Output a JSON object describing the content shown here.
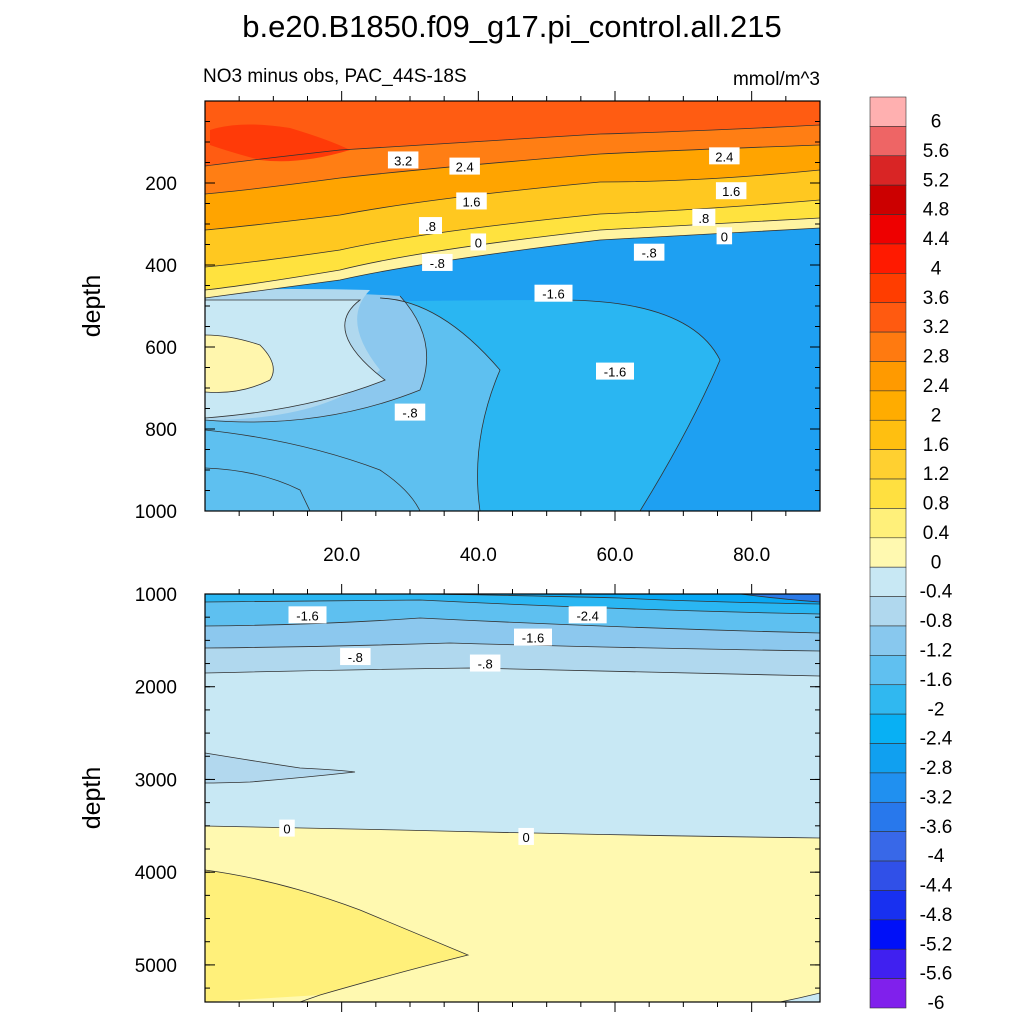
{
  "chart_data": {
    "title": "b.e20.B1850.f09_g17.pi_control.all.215",
    "left_subtitle": "NO3 minus obs, PAC_44S-18S",
    "units": "mmol/m^3",
    "type": "heatmap",
    "colorbar": {
      "levels": [
        6,
        5.6,
        5.2,
        4.8,
        4.4,
        4,
        3.6,
        3.2,
        2.8,
        2.4,
        2,
        1.6,
        1.2,
        0.8,
        0.4,
        0,
        -0.4,
        -0.8,
        -1.2,
        -1.6,
        -2,
        -2.4,
        -2.8,
        -3.2,
        -3.6,
        -4,
        -4.4,
        -4.8,
        -5.2,
        -5.6,
        -6
      ],
      "labels": [
        "6",
        "5.6",
        "5.2",
        "4.8",
        "4.4",
        "4",
        "3.6",
        "3.2",
        "2.8",
        "2.4",
        "2",
        "1.6",
        "1.2",
        "0.8",
        "0.4",
        "0",
        "-0.4",
        "-0.8",
        "-1.2",
        "-1.6",
        "-2",
        "-2.4",
        "-2.8",
        "-3.2",
        "-3.6",
        "-4",
        "-4.4",
        "-4.8",
        "-5.2",
        "-5.6",
        "-6"
      ],
      "colors": [
        "#ffb0b0",
        "#ee6565",
        "#d92525",
        "#cc0000",
        "#ee0000",
        "#ff1a00",
        "#ff3d00",
        "#ff5a10",
        "#ff7a10",
        "#ff9a00",
        "#ffac00",
        "#ffbf10",
        "#ffd030",
        "#ffe040",
        "#fff07a",
        "#fff9b0",
        "#c8e8f4",
        "#b0d8ee",
        "#88c8ee",
        "#60c0f0",
        "#30b8f0",
        "#08b0f4",
        "#10a0f0",
        "#2090f0",
        "#2878ec",
        "#3868e8",
        "#3050e8",
        "#1830f0",
        "#0010f8",
        "#4020f0",
        "#8020ec"
      ]
    },
    "panels": [
      {
        "name": "upper",
        "ylabel": "depth",
        "ylim": [
          1000,
          0
        ],
        "xlim": [
          0,
          90
        ],
        "yticks": [
          200,
          400,
          600,
          800,
          1000
        ],
        "ytick_labels": [
          "200",
          "400",
          "600",
          "800",
          "1000"
        ],
        "xticks": [
          20,
          40,
          60,
          80
        ],
        "xtick_labels": [
          "20.0",
          "40.0",
          "60.0",
          "80.0"
        ],
        "contour_labels": [
          {
            "text": "3.2",
            "x": 29,
            "y": 145
          },
          {
            "text": "2.4",
            "x": 38,
            "y": 160
          },
          {
            "text": "2.4",
            "x": 76,
            "y": 135
          },
          {
            "text": "1.6",
            "x": 39,
            "y": 245
          },
          {
            "text": "1.6",
            "x": 77,
            "y": 220
          },
          {
            "text": ".8",
            "x": 33,
            "y": 305
          },
          {
            "text": ".8",
            "x": 73,
            "y": 285
          },
          {
            "text": "0",
            "x": 40,
            "y": 345
          },
          {
            "text": "0",
            "x": 76,
            "y": 330
          },
          {
            "text": "-.8",
            "x": 34,
            "y": 395
          },
          {
            "text": "-.8",
            "x": 65,
            "y": 370
          },
          {
            "text": "-1.6",
            "x": 51,
            "y": 470
          },
          {
            "text": "-1.6",
            "x": 60,
            "y": 660
          },
          {
            "text": "-.8",
            "x": 30,
            "y": 760
          }
        ]
      },
      {
        "name": "lower",
        "ylabel": "depth",
        "ylim": [
          5400,
          1000
        ],
        "xlim": [
          0,
          90
        ],
        "yticks": [
          1000,
          2000,
          3000,
          4000,
          5000
        ],
        "ytick_labels": [
          "1000",
          "2000",
          "3000",
          "4000",
          "5000"
        ],
        "contour_labels": [
          {
            "text": "-1.6",
            "x": 15,
            "y": 1230
          },
          {
            "text": "-2.4",
            "x": 56,
            "y": 1230
          },
          {
            "text": "-1.6",
            "x": 48,
            "y": 1470
          },
          {
            "text": "-.8",
            "x": 22,
            "y": 1680
          },
          {
            "text": "-.8",
            "x": 41,
            "y": 1750
          },
          {
            "text": "0",
            "x": 12,
            "y": 3530
          },
          {
            "text": "0",
            "x": 47,
            "y": 3620
          }
        ]
      }
    ]
  }
}
